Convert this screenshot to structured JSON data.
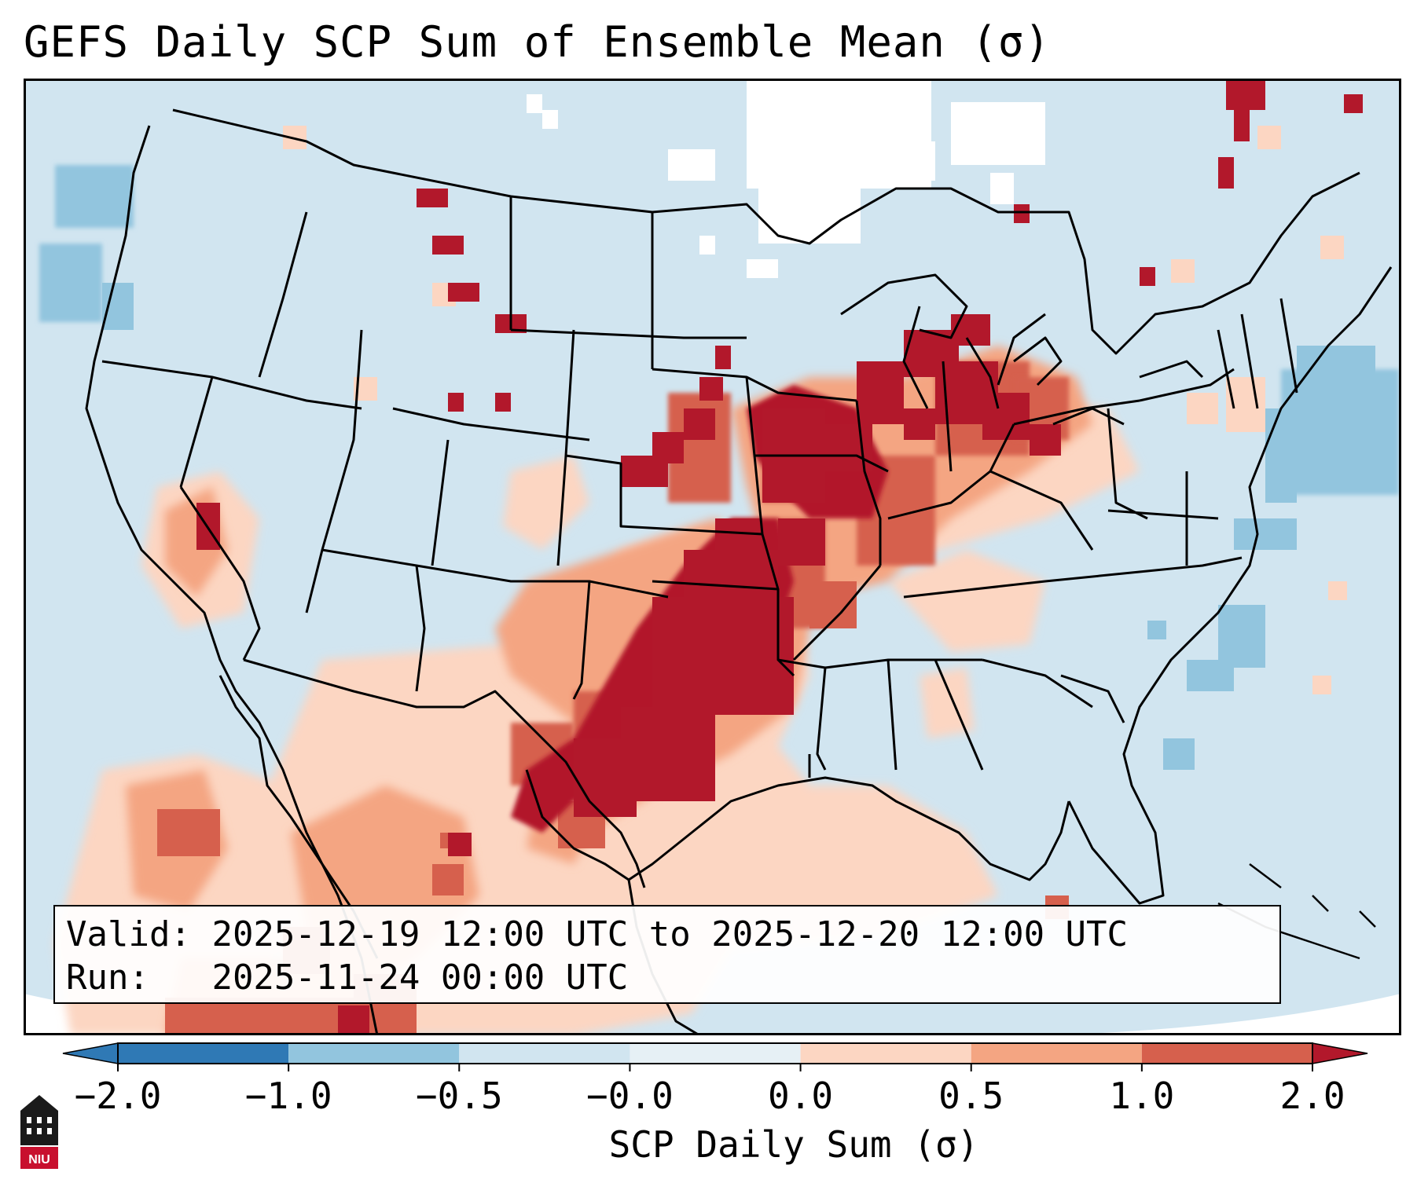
{
  "title": "GEFS Daily SCP Sum of Ensemble Mean (σ)",
  "info": {
    "valid_label": "Valid:",
    "valid_value": "2025-12-19 12:00 UTC to 2025-12-20 12:00 UTC",
    "run_label": "Run:",
    "run_value": "2025-11-24 00:00 UTC"
  },
  "colorbar": {
    "label": "SCP Daily Sum (σ)",
    "ticks": [
      "−2.0",
      "−1.0",
      "−0.5",
      "−0.0",
      "0.0",
      "0.5",
      "1.0",
      "2.0"
    ],
    "colors": [
      "#2f79b5",
      "#6aa9d2",
      "#a7d0e4",
      "#d1e5f0",
      "#fcd6c2",
      "#f4a582",
      "#d6604d",
      "#b2182b"
    ],
    "extend": "both"
  },
  "map": {
    "region": "CONUS",
    "ocean_color": "#d1e5f0",
    "regions": [
      {
        "name": "southern-plains-maximum",
        "value_sigma": 2.0
      },
      {
        "name": "midwest-great-lakes-maximum",
        "value_sigma": 1.5
      },
      {
        "name": "texas-gulf-coast",
        "value_sigma": 0.3
      },
      {
        "name": "atlantic-ocean-minimum",
        "value_sigma": -0.8
      }
    ]
  },
  "logo": {
    "text": "NIU",
    "name": "niu-logo"
  }
}
